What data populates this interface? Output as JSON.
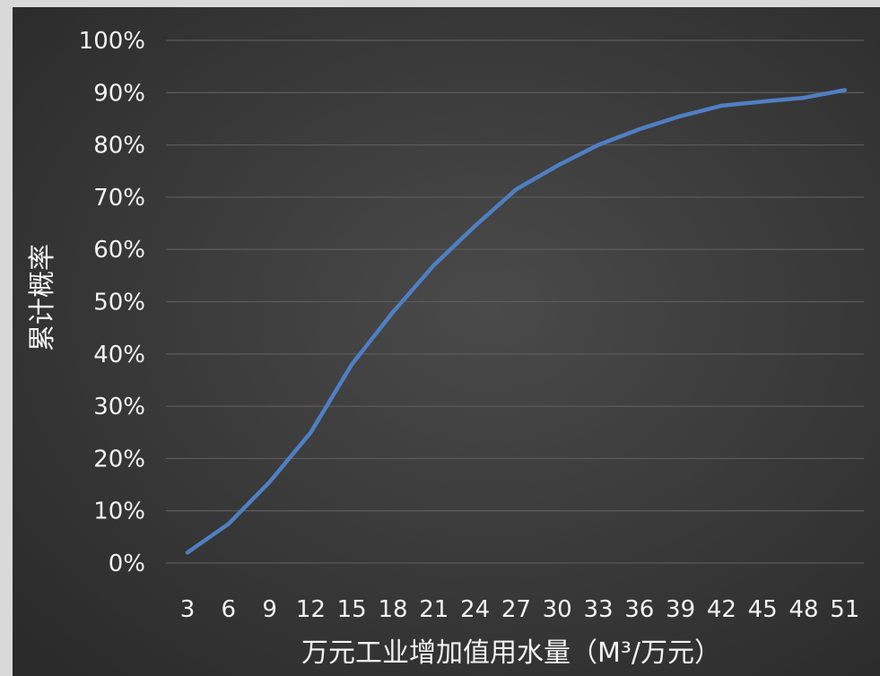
{
  "chart_data": {
    "type": "line",
    "ylabel": "累计概率",
    "xlabel": "万元工业增加值用水量（M³/万元）",
    "categories": [
      "3",
      "6",
      "9",
      "12",
      "15",
      "18",
      "21",
      "24",
      "27",
      "30",
      "33",
      "36",
      "39",
      "42",
      "45",
      "48",
      "51"
    ],
    "y_ticks": [
      "0%",
      "10%",
      "20%",
      "30%",
      "40%",
      "50%",
      "60%",
      "70%",
      "80%",
      "90%",
      "100%"
    ],
    "ylim": [
      0,
      100
    ],
    "grid": true,
    "series": [
      {
        "values": [
          2,
          7.5,
          15.5,
          25,
          38,
          48,
          57,
          64.5,
          71.5,
          76,
          80,
          83,
          85.5,
          87.5,
          88.3,
          89,
          90.5
        ]
      }
    ],
    "colors": {
      "line": "#4f7fc3",
      "plot_bg": "#3c3c3c",
      "grid": "#5a5a5a",
      "text": "#f2f2f2"
    }
  }
}
